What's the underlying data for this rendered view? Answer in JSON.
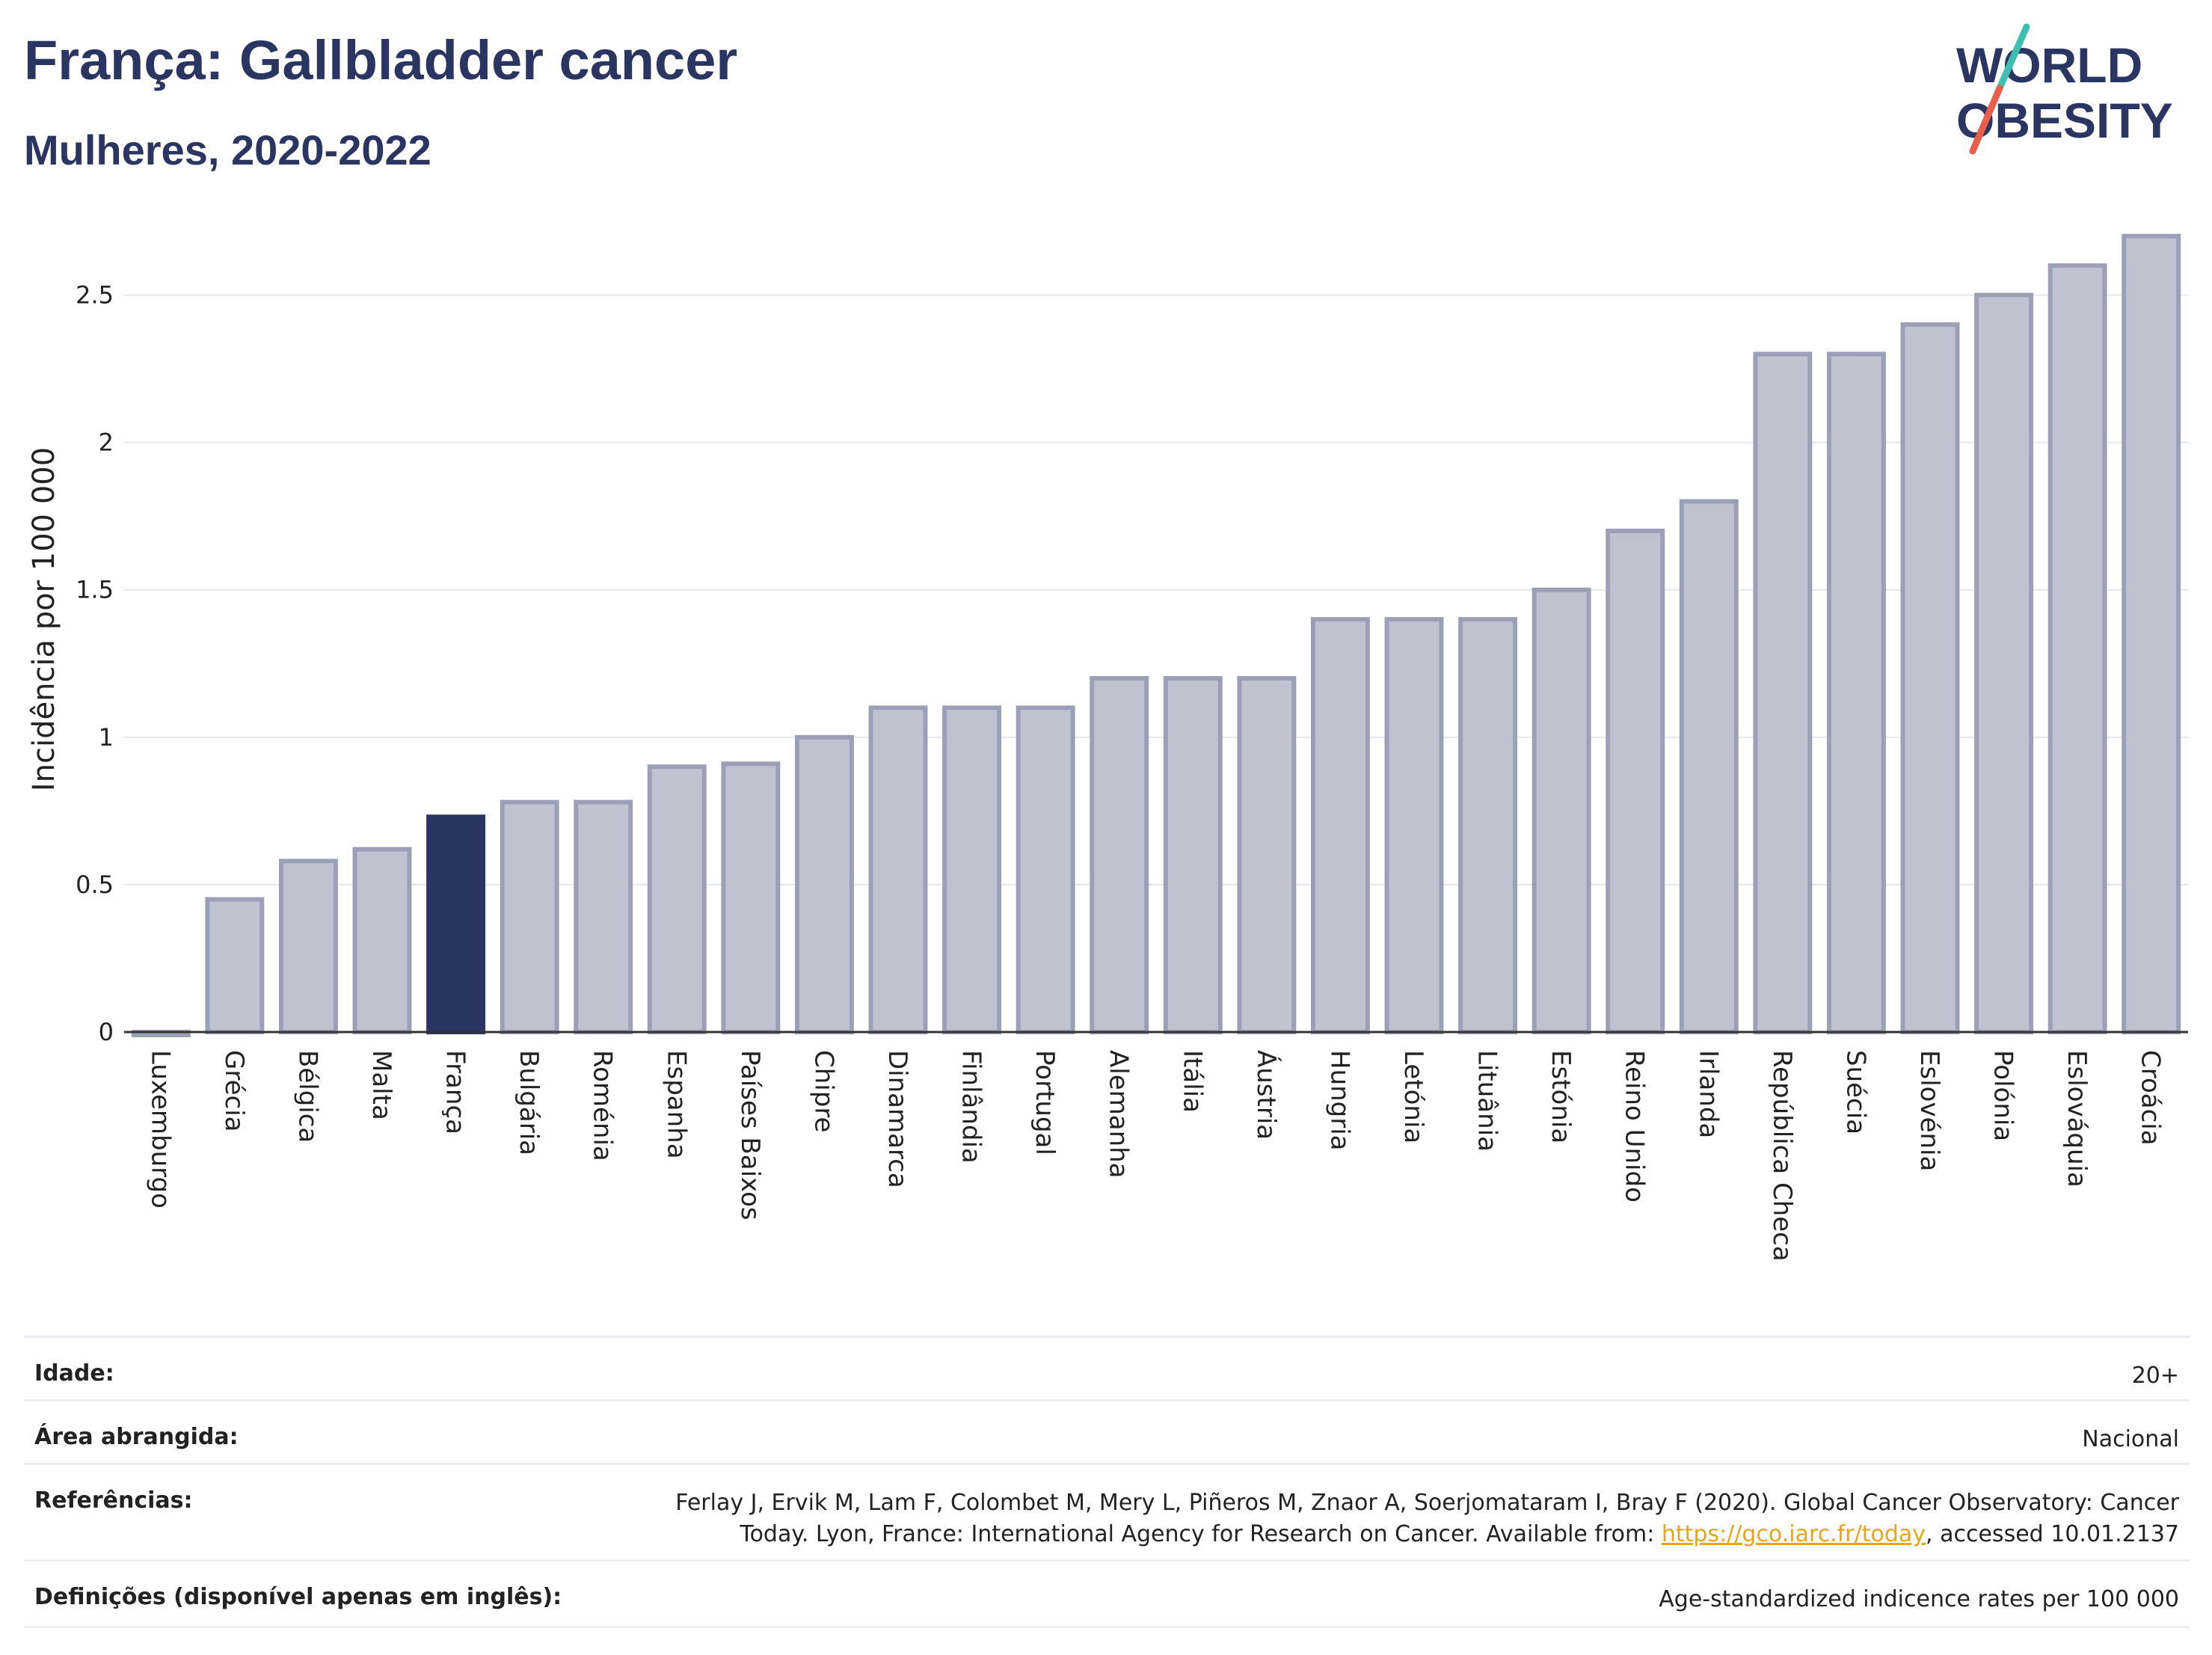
{
  "header": {
    "title": "França: Gallbladder cancer",
    "subtitle": "Mulheres, 2020-2022"
  },
  "logo": {
    "line1": "WORLD",
    "line2": "OBESITY",
    "accent_colors": [
      "#3fbfb2",
      "#e8604c"
    ]
  },
  "colors": {
    "bar": "#bfc2cf",
    "bar_border": "#9ba0b7",
    "highlight": "#2b3561",
    "grid": "#e6e7ee"
  },
  "chart_data": {
    "type": "bar",
    "title": "França: Gallbladder cancer",
    "subtitle": "Mulheres, 2020-2022",
    "ylabel": "Incidência por 100 000",
    "xlabel": "",
    "ylim": [
      0,
      2.75
    ],
    "yticks": [
      0,
      0.5,
      1,
      1.5,
      2,
      2.5
    ],
    "ytick_labels": [
      "0",
      "0.5",
      "1",
      "1.5",
      "2",
      "2.5"
    ],
    "grid": true,
    "highlight": "França",
    "categories": [
      "Luxemburgo",
      "Grécia",
      "Bélgica",
      "Malta",
      "França",
      "Bulgária",
      "Roménia",
      "Espanha",
      "Países Baixos",
      "Chipre",
      "Dinamarca",
      "Finlândia",
      "Portugal",
      "Alemanha",
      "Itália",
      "Áustria",
      "Hungria",
      "Letónia",
      "Lituânia",
      "Estónia",
      "Reino Unido",
      "Irlanda",
      "República Checa",
      "Suécia",
      "Eslovénia",
      "Polónia",
      "Eslováquia",
      "Croácia"
    ],
    "values": [
      0.0,
      0.45,
      0.58,
      0.62,
      0.73,
      0.78,
      0.78,
      0.9,
      0.91,
      1.0,
      1.1,
      1.1,
      1.1,
      1.2,
      1.2,
      1.2,
      1.4,
      1.4,
      1.4,
      1.5,
      1.7,
      1.8,
      2.3,
      2.3,
      2.4,
      2.5,
      2.6,
      2.7
    ]
  },
  "meta": {
    "age_label": "Idade:",
    "age_value": "20+",
    "area_label": "Área abrangida:",
    "area_value": "Nacional",
    "refs_label": "Referências:",
    "refs_line1": "Ferlay J, Ervik M, Lam F, Colombet M, Mery L, Piñeros M, Znaor A, Soerjomataram I, Bray F (2020). Global Cancer Observatory: Cancer",
    "refs_line2_pre": "Today. Lyon, France: International Agency for Research on Cancer. Available from: ",
    "refs_link": "https://gco.iarc.fr/today",
    "refs_line2_post": ", accessed 10.01.2137",
    "defs_label": "Definições (disponível apenas em inglês):",
    "defs_value": "Age-standardized indicence rates per 100 000"
  }
}
